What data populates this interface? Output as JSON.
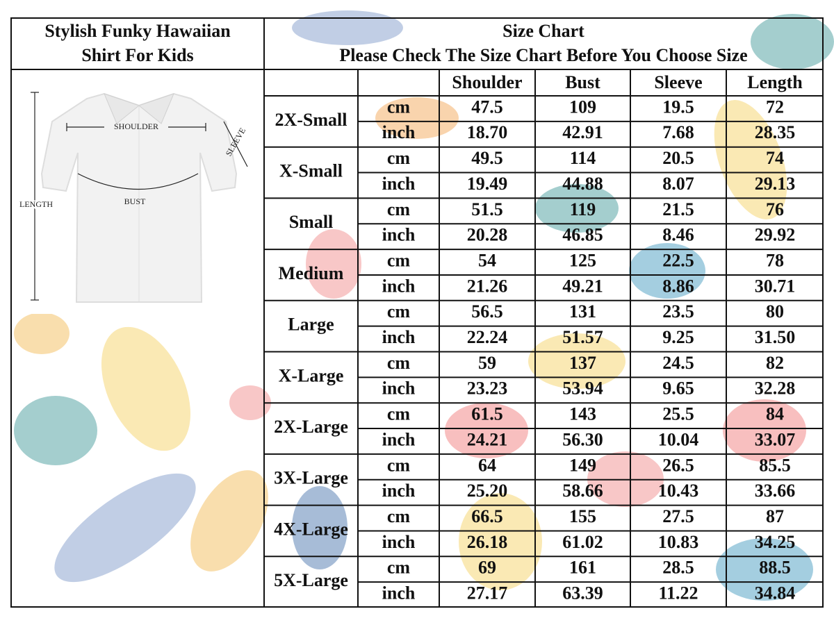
{
  "left_panel": {
    "title_lines": [
      "Stylish Funky Hawaiian",
      "Shirt For Kids"
    ],
    "diagram": {
      "shoulder": "SHOULDER",
      "sleeve": "SLEEVE",
      "length": "LENGTH",
      "bust": "BUST"
    }
  },
  "table": {
    "title": "Size Chart",
    "subtitle": "Please Check The Size Chart Before You Choose Size",
    "columns": [
      "Shoulder",
      "Bust",
      "Sleeve",
      "Length"
    ],
    "units": [
      "cm",
      "inch"
    ],
    "rows": [
      {
        "size": "2X-Small",
        "cm": [
          "47.5",
          "109",
          "19.5",
          "72"
        ],
        "inch": [
          "18.70",
          "42.91",
          "7.68",
          "28.35"
        ]
      },
      {
        "size": "X-Small",
        "cm": [
          "49.5",
          "114",
          "20.5",
          "74"
        ],
        "inch": [
          "19.49",
          "44.88",
          "8.07",
          "29.13"
        ]
      },
      {
        "size": "Small",
        "cm": [
          "51.5",
          "119",
          "21.5",
          "76"
        ],
        "inch": [
          "20.28",
          "46.85",
          "8.46",
          "29.92"
        ]
      },
      {
        "size": "Medium",
        "cm": [
          "54",
          "125",
          "22.5",
          "78"
        ],
        "inch": [
          "21.26",
          "49.21",
          "8.86",
          "30.71"
        ]
      },
      {
        "size": "Large",
        "cm": [
          "56.5",
          "131",
          "23.5",
          "80"
        ],
        "inch": [
          "22.24",
          "51.57",
          "9.25",
          "31.50"
        ]
      },
      {
        "size": "X-Large",
        "cm": [
          "59",
          "137",
          "24.5",
          "82"
        ],
        "inch": [
          "23.23",
          "53.94",
          "9.65",
          "32.28"
        ]
      },
      {
        "size": "2X-Large",
        "cm": [
          "61.5",
          "143",
          "25.5",
          "84"
        ],
        "inch": [
          "24.21",
          "56.30",
          "10.04",
          "33.07"
        ]
      },
      {
        "size": "3X-Large",
        "cm": [
          "64",
          "149",
          "26.5",
          "85.5"
        ],
        "inch": [
          "25.20",
          "58.66",
          "10.43",
          "33.66"
        ]
      },
      {
        "size": "4X-Large",
        "cm": [
          "66.5",
          "155",
          "27.5",
          "87"
        ],
        "inch": [
          "26.18",
          "61.02",
          "10.83",
          "34.25"
        ]
      },
      {
        "size": "5X-Large",
        "cm": [
          "69",
          "161",
          "28.5",
          "88.5"
        ],
        "inch": [
          "27.17",
          "63.39",
          "11.22",
          "34.84"
        ]
      }
    ]
  }
}
